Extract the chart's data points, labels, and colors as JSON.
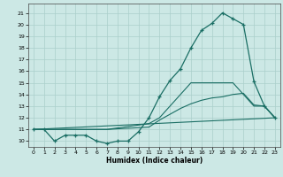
{
  "xlabel": "Humidex (Indice chaleur)",
  "bg_color": "#cce8e5",
  "line_color": "#1a6e64",
  "grid_color": "#aacfcb",
  "xlim": [
    -0.5,
    23.5
  ],
  "ylim": [
    9.5,
    21.8
  ],
  "xticks": [
    0,
    1,
    2,
    3,
    4,
    5,
    6,
    7,
    8,
    9,
    10,
    11,
    12,
    13,
    14,
    15,
    16,
    17,
    18,
    19,
    20,
    21,
    22,
    23
  ],
  "yticks": [
    10,
    11,
    12,
    13,
    14,
    15,
    16,
    17,
    18,
    19,
    20,
    21
  ],
  "line1_x": [
    0,
    1,
    2,
    3,
    4,
    5,
    6,
    7,
    8,
    9,
    10,
    11,
    12,
    13,
    14,
    15,
    16,
    17,
    18,
    19,
    20,
    21,
    22,
    23
  ],
  "line1_y": [
    11,
    11,
    10,
    10.5,
    10.5,
    10.5,
    10,
    9.8,
    10,
    10,
    10.8,
    12,
    13.8,
    15.2,
    16.2,
    18,
    19.5,
    20.1,
    21,
    20.5,
    20,
    15.1,
    13,
    12
  ],
  "line2_x": [
    0,
    23
  ],
  "line2_y": [
    11,
    12
  ],
  "line3_x": [
    0,
    7,
    11,
    12,
    13,
    14,
    15,
    19,
    20,
    21,
    22,
    23
  ],
  "line3_y": [
    11,
    11,
    11.5,
    12,
    13,
    14,
    15,
    15,
    14,
    13,
    13,
    12
  ],
  "line4_x": [
    0,
    7,
    11,
    12,
    13,
    14,
    15,
    16,
    17,
    18,
    19,
    20,
    21,
    22,
    23
  ],
  "line4_y": [
    11,
    11,
    11.2,
    11.8,
    12.3,
    12.8,
    13.2,
    13.5,
    13.7,
    13.8,
    14.0,
    14.1,
    13.1,
    13,
    12
  ]
}
